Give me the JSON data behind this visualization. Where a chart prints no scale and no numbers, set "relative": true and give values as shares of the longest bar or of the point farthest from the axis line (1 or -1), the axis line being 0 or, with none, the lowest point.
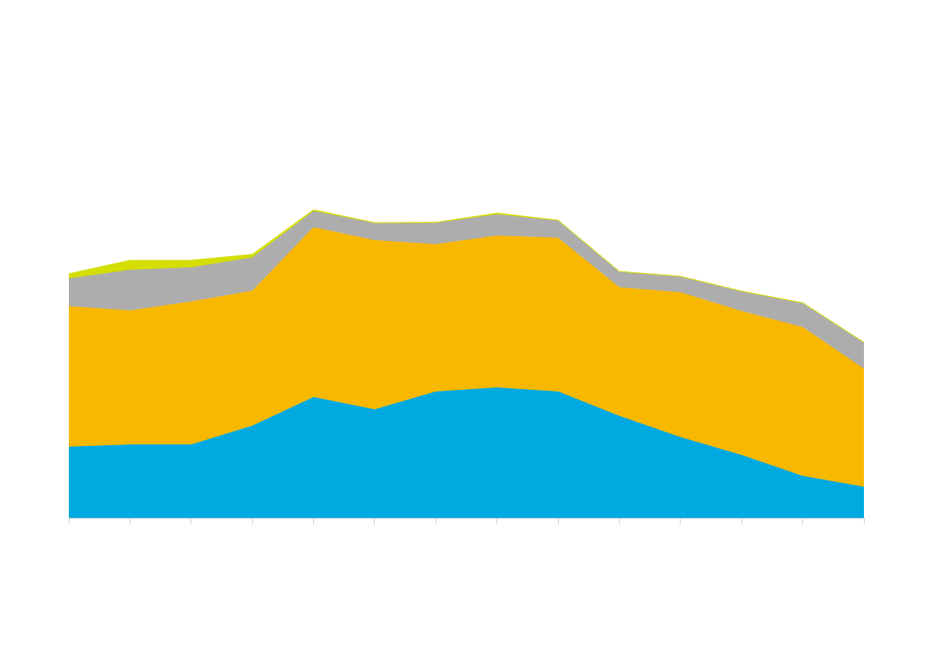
{
  "chart_data": {
    "type": "area",
    "stacked": true,
    "relative": true,
    "legend": false,
    "categories": [
      null,
      null,
      null,
      null,
      null,
      null,
      null,
      null,
      null,
      null,
      null,
      null,
      null,
      null
    ],
    "series": [
      {
        "color": "#00a9e0",
        "values": [
          0.23,
          0.237,
          0.237,
          0.298,
          0.391,
          0.351,
          0.409,
          0.422,
          0.409,
          0.33,
          0.261,
          0.203,
          0.135,
          0.1
        ]
      },
      {
        "color": "#f8b800",
        "values": [
          0.456,
          0.435,
          0.464,
          0.438,
          0.551,
          0.549,
          0.478,
          0.493,
          0.499,
          0.417,
          0.47,
          0.467,
          0.483,
          0.383
        ]
      },
      {
        "color": "#adadad",
        "values": [
          0.09,
          0.132,
          0.111,
          0.108,
          0.053,
          0.055,
          0.069,
          0.069,
          0.055,
          0.05,
          0.05,
          0.063,
          0.077,
          0.084
        ]
      },
      {
        "color": "#d4de00",
        "values": [
          0.016,
          0.032,
          0.024,
          0.011,
          0.005,
          0.003,
          0.003,
          0.005,
          0.003,
          0.003,
          0.003,
          0.003,
          0.003,
          0.003
        ]
      }
    ]
  }
}
